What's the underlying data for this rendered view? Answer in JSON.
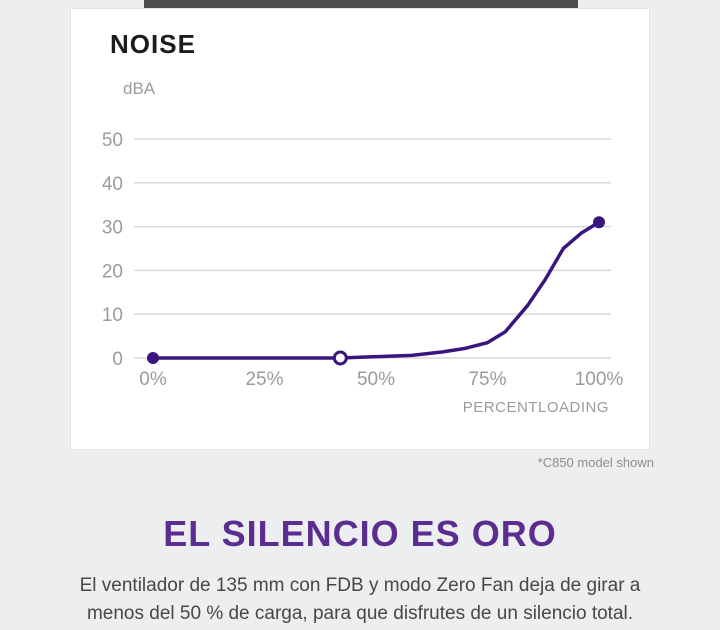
{
  "page": {
    "caption": "*C850 model shown",
    "heading": "EL SILENCIO ES ORO",
    "body_line1": "El ventilador de 135 mm con FDB y modo Zero Fan deja de girar a",
    "body_line2": "menos del 50 % de carga, para que disfrutes de un silencio total.",
    "colors": {
      "background": "#edeef0",
      "card": "#ffffff",
      "heading_purple": "#5b2d90",
      "line_purple": "#3a1580",
      "axis_text": "#9b9b9b",
      "gridline": "#d9d9d9",
      "body_text": "#474747"
    }
  },
  "chart_data": {
    "type": "line",
    "title": "NOISE",
    "ylabel": "dBA",
    "xlabel": "PERCENTLOADING",
    "ylim": [
      0,
      50
    ],
    "xlim": [
      0,
      100
    ],
    "yticks": [
      0,
      10,
      20,
      30,
      40,
      50
    ],
    "xticks": [
      "0%",
      "25%",
      "50%",
      "75%",
      "100%"
    ],
    "xtick_values": [
      0,
      25,
      50,
      75,
      100
    ],
    "grid": "horizontal-only",
    "legend": "none",
    "series": [
      {
        "name": "noise-dBA-vs-load",
        "color": "#3a1580",
        "points": [
          [
            0,
            0
          ],
          [
            42,
            0
          ],
          [
            50,
            0.3
          ],
          [
            58,
            0.6
          ],
          [
            65,
            1.4
          ],
          [
            70,
            2.2
          ],
          [
            75,
            3.5
          ],
          [
            79,
            6
          ],
          [
            84,
            12
          ],
          [
            88,
            18
          ],
          [
            92,
            25
          ],
          [
            96,
            28.5
          ],
          [
            100,
            31
          ]
        ]
      }
    ],
    "markers": [
      {
        "x": 0,
        "y": 0,
        "style": "filled"
      },
      {
        "x": 42,
        "y": 0,
        "style": "open"
      },
      {
        "x": 100,
        "y": 31,
        "style": "filled"
      }
    ]
  }
}
